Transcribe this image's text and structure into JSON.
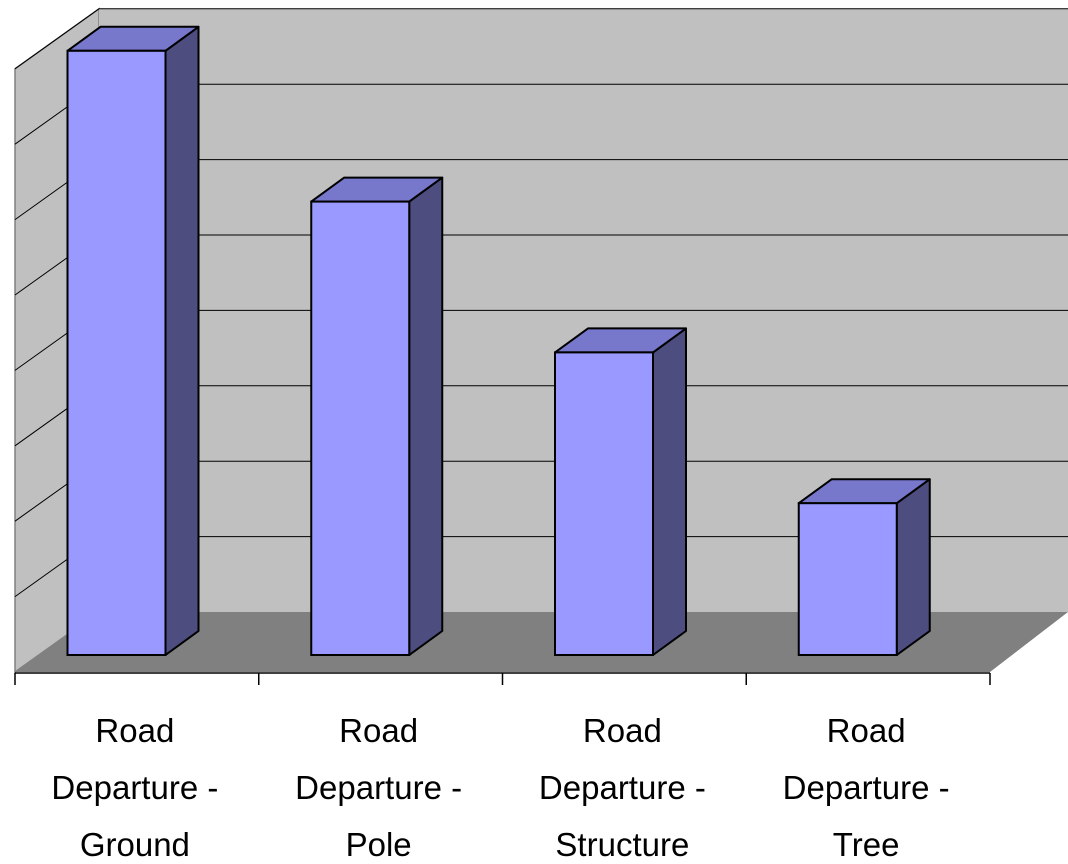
{
  "chart_data": {
    "type": "bar",
    "title": "",
    "xlabel": "",
    "ylabel": "",
    "categories": [
      [
        "Road",
        "Departure -",
        "Ground"
      ],
      [
        "Road",
        "Departure -",
        "Pole"
      ],
      [
        "Road",
        "Departure -",
        "Structure"
      ],
      [
        "Road",
        "Departure -",
        "Tree"
      ]
    ],
    "values": [
      8,
      6,
      4,
      2
    ],
    "ylim": [
      0,
      8
    ],
    "gridlines": 8,
    "grid": true,
    "legend": "none",
    "projection": "3d-column",
    "colors": {
      "bar_front": "#9999ff",
      "bar_top": "#7777cc",
      "bar_side": "#4d4d80",
      "back_wall": "#c0c0c0",
      "floor": "#808080",
      "grid": "#000000",
      "outline": "#000000"
    }
  }
}
